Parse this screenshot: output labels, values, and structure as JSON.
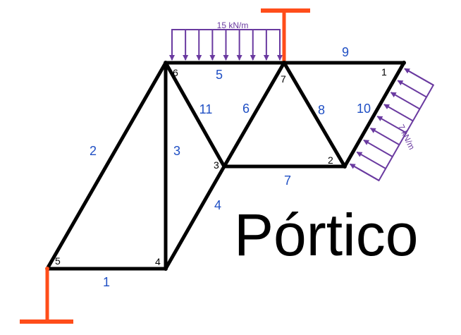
{
  "title": "Pórtico",
  "colors": {
    "member": "#000000",
    "support": "#ff4d1a",
    "load": "#6a3aa0",
    "member_label": "#1f4fc4",
    "node_label": "#000000"
  },
  "nodes": [
    {
      "id": "1",
      "label": "1"
    },
    {
      "id": "2",
      "label": "2"
    },
    {
      "id": "3",
      "label": "3"
    },
    {
      "id": "4",
      "label": "4"
    },
    {
      "id": "5",
      "label": "5"
    },
    {
      "id": "6",
      "label": "6"
    },
    {
      "id": "7",
      "label": "7"
    }
  ],
  "members": [
    {
      "id": "1",
      "label": "1",
      "from": "5",
      "to": "4"
    },
    {
      "id": "2",
      "label": "2",
      "from": "5",
      "to": "6"
    },
    {
      "id": "3",
      "label": "3",
      "from": "4",
      "to": "6"
    },
    {
      "id": "4",
      "label": "4",
      "from": "4",
      "to": "3"
    },
    {
      "id": "5",
      "label": "5",
      "from": "6",
      "to": "7"
    },
    {
      "id": "6",
      "label": "6",
      "from": "3",
      "to": "7"
    },
    {
      "id": "7",
      "label": "7",
      "from": "3",
      "to": "2"
    },
    {
      "id": "8",
      "label": "8",
      "from": "7",
      "to": "2"
    },
    {
      "id": "9",
      "label": "9",
      "from": "7",
      "to": "1"
    },
    {
      "id": "10",
      "label": "10",
      "from": "2",
      "to": "1"
    },
    {
      "id": "11",
      "label": "11",
      "from": "6",
      "to": "3"
    }
  ],
  "supports": [
    {
      "node": "5",
      "type": "fixed-bottom"
    },
    {
      "node": "7",
      "type": "fixed-top"
    }
  ],
  "loads": [
    {
      "member": "5",
      "label": "15 kN/m",
      "direction": "down"
    },
    {
      "member": "10",
      "label": "7 kN/m",
      "direction": "perpendicular"
    }
  ]
}
